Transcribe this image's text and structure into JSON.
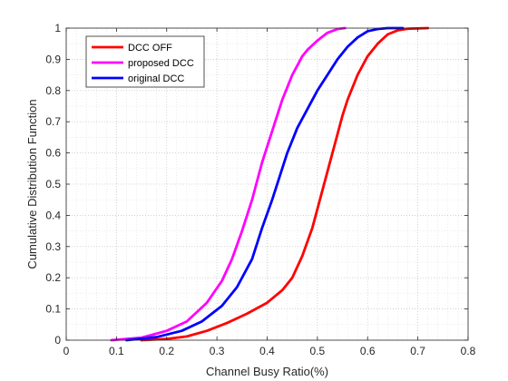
{
  "chart_data": {
    "type": "line",
    "xlabel": "Channel Busy Ratio(%)",
    "ylabel": "Cumulative Distribution Function",
    "xlim": [
      0,
      0.8
    ],
    "ylim": [
      0,
      1
    ],
    "xticks": [
      0,
      0.1,
      0.2,
      0.3,
      0.4,
      0.5,
      0.6,
      0.7,
      0.8
    ],
    "xtick_labels": [
      "0",
      "0.1",
      "0.2",
      "0.3",
      "0.4",
      "0.5",
      "0.6",
      "0.7",
      "0.8"
    ],
    "yticks": [
      0,
      0.1,
      0.2,
      0.3,
      0.4,
      0.5,
      0.6,
      0.7,
      0.8,
      0.9,
      1
    ],
    "ytick_labels": [
      "0",
      "0.1",
      "0.2",
      "0.3",
      "0.4",
      "0.5",
      "0.6",
      "0.7",
      "0.8",
      "0.9",
      "1"
    ],
    "grid": "major and minor, dotted",
    "legend_position": "top-left",
    "series": [
      {
        "name": "DCC OFF",
        "color": "#ff0000",
        "x": [
          0.15,
          0.2,
          0.24,
          0.28,
          0.32,
          0.36,
          0.4,
          0.43,
          0.45,
          0.47,
          0.49,
          0.5,
          0.51,
          0.52,
          0.53,
          0.54,
          0.55,
          0.56,
          0.58,
          0.6,
          0.62,
          0.64,
          0.66,
          0.68,
          0.72
        ],
        "y": [
          0,
          0.004,
          0.012,
          0.03,
          0.055,
          0.085,
          0.12,
          0.16,
          0.2,
          0.27,
          0.36,
          0.42,
          0.48,
          0.54,
          0.6,
          0.66,
          0.72,
          0.77,
          0.85,
          0.91,
          0.95,
          0.98,
          0.993,
          0.998,
          1.0
        ]
      },
      {
        "name": "proposed DCC",
        "color": "#ff00ff",
        "x": [
          0.09,
          0.15,
          0.2,
          0.24,
          0.28,
          0.31,
          0.33,
          0.35,
          0.37,
          0.38,
          0.39,
          0.4,
          0.41,
          0.42,
          0.43,
          0.44,
          0.45,
          0.46,
          0.47,
          0.48,
          0.5,
          0.52,
          0.54,
          0.555
        ],
        "y": [
          0,
          0.008,
          0.03,
          0.06,
          0.12,
          0.19,
          0.26,
          0.35,
          0.45,
          0.51,
          0.57,
          0.62,
          0.67,
          0.72,
          0.77,
          0.81,
          0.85,
          0.88,
          0.91,
          0.93,
          0.96,
          0.985,
          0.997,
          1.0
        ]
      },
      {
        "name": "original DCC",
        "color": "#0000ff",
        "x": [
          0.12,
          0.18,
          0.23,
          0.27,
          0.31,
          0.34,
          0.37,
          0.39,
          0.41,
          0.42,
          0.43,
          0.44,
          0.45,
          0.46,
          0.47,
          0.48,
          0.5,
          0.52,
          0.54,
          0.56,
          0.58,
          0.6,
          0.62,
          0.64,
          0.67
        ],
        "y": [
          0,
          0.01,
          0.03,
          0.06,
          0.11,
          0.17,
          0.26,
          0.36,
          0.45,
          0.5,
          0.55,
          0.6,
          0.64,
          0.68,
          0.71,
          0.74,
          0.8,
          0.85,
          0.9,
          0.94,
          0.97,
          0.99,
          0.997,
          1.0,
          1.0
        ]
      }
    ]
  }
}
